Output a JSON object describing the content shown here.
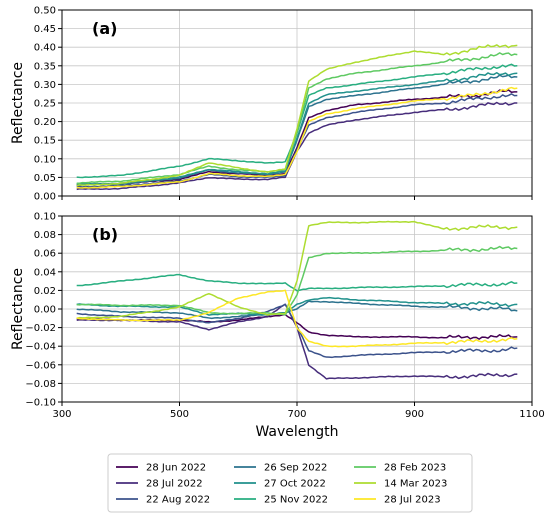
{
  "chart_data": [
    {
      "type": "line",
      "panel_label": "(a)",
      "ylabel": "Reflectance",
      "xlabel": "",
      "xlim": [
        300,
        1100
      ],
      "ylim": [
        0,
        0.5
      ],
      "xticks": [
        300,
        500,
        700,
        900,
        1100
      ],
      "xtick_labels": [
        "",
        "",
        "",
        "",
        ""
      ],
      "yticks": [
        0,
        0.05,
        0.1,
        0.15,
        0.2,
        0.25,
        0.3,
        0.35,
        0.4,
        0.45,
        0.5
      ],
      "ytick_labels": [
        "0.00",
        "0.05",
        "0.10",
        "0.15",
        "0.20",
        "0.25",
        "0.30",
        "0.35",
        "0.40",
        "0.45",
        "0.50"
      ],
      "grid": true,
      "series": [
        {
          "name": "28 Jun 2022",
          "color": "#440154",
          "x": [
            325,
            400,
            500,
            550,
            600,
            650,
            680,
            700,
            720,
            750,
            800,
            900,
            950,
            1000,
            1050,
            1075
          ],
          "y": [
            0.03,
            0.032,
            0.045,
            0.065,
            0.06,
            0.055,
            0.06,
            0.13,
            0.21,
            0.23,
            0.245,
            0.26,
            0.265,
            0.27,
            0.28,
            0.28
          ]
        },
        {
          "name": "28 Jul 2022",
          "color": "#472d7b",
          "x": [
            325,
            400,
            500,
            550,
            600,
            650,
            680,
            700,
            720,
            750,
            800,
            900,
            950,
            1000,
            1050,
            1075
          ],
          "y": [
            0.018,
            0.02,
            0.035,
            0.05,
            0.045,
            0.045,
            0.05,
            0.12,
            0.17,
            0.19,
            0.205,
            0.225,
            0.232,
            0.24,
            0.25,
            0.25
          ]
        },
        {
          "name": "22 Aug 2022",
          "color": "#3b528b",
          "x": [
            325,
            400,
            500,
            550,
            600,
            650,
            680,
            700,
            720,
            750,
            800,
            900,
            950,
            1000,
            1050,
            1075
          ],
          "y": [
            0.025,
            0.027,
            0.04,
            0.058,
            0.052,
            0.05,
            0.055,
            0.125,
            0.19,
            0.21,
            0.225,
            0.245,
            0.25,
            0.26,
            0.27,
            0.27
          ]
        },
        {
          "name": "26 Sep 2022",
          "color": "#2c728e",
          "x": [
            325,
            400,
            500,
            550,
            600,
            650,
            680,
            700,
            720,
            750,
            800,
            900,
            950,
            1000,
            1050,
            1075
          ],
          "y": [
            0.03,
            0.032,
            0.048,
            0.07,
            0.062,
            0.058,
            0.065,
            0.15,
            0.24,
            0.26,
            0.27,
            0.29,
            0.3,
            0.31,
            0.32,
            0.32
          ]
        },
        {
          "name": "27 Oct 2022",
          "color": "#21918c",
          "x": [
            325,
            400,
            500,
            550,
            600,
            650,
            680,
            700,
            720,
            750,
            800,
            900,
            950,
            1000,
            1050,
            1075
          ],
          "y": [
            0.032,
            0.034,
            0.05,
            0.072,
            0.065,
            0.06,
            0.067,
            0.155,
            0.25,
            0.272,
            0.282,
            0.3,
            0.31,
            0.32,
            0.33,
            0.33
          ]
        },
        {
          "name": "25 Nov 2022",
          "color": "#28ae80",
          "x": [
            325,
            400,
            500,
            550,
            600,
            650,
            680,
            700,
            720,
            750,
            800,
            900,
            950,
            1000,
            1050,
            1075
          ],
          "y": [
            0.05,
            0.055,
            0.08,
            0.1,
            0.095,
            0.088,
            0.092,
            0.17,
            0.27,
            0.29,
            0.3,
            0.32,
            0.33,
            0.34,
            0.35,
            0.35
          ]
        },
        {
          "name": "28 Feb 2023",
          "color": "#5ec962",
          "x": [
            325,
            400,
            500,
            550,
            600,
            650,
            680,
            700,
            720,
            750,
            800,
            900,
            950,
            1000,
            1050,
            1075
          ],
          "y": [
            0.035,
            0.04,
            0.058,
            0.08,
            0.07,
            0.065,
            0.072,
            0.17,
            0.29,
            0.315,
            0.33,
            0.35,
            0.36,
            0.37,
            0.38,
            0.38
          ]
        },
        {
          "name": "14 Mar 2023",
          "color": "#addc30",
          "x": [
            325,
            400,
            500,
            550,
            600,
            650,
            680,
            700,
            720,
            750,
            800,
            900,
            950,
            1000,
            1050,
            1075
          ],
          "y": [
            0.028,
            0.034,
            0.055,
            0.09,
            0.075,
            0.065,
            0.072,
            0.18,
            0.31,
            0.34,
            0.36,
            0.39,
            0.38,
            0.395,
            0.405,
            0.405
          ]
        },
        {
          "name": "28 Jul 2023",
          "color": "#fde725",
          "x": [
            325,
            400,
            500,
            550,
            600,
            650,
            680,
            700,
            720,
            750,
            800,
            900,
            950,
            1000,
            1050,
            1075
          ],
          "y": [
            0.022,
            0.025,
            0.038,
            0.06,
            0.055,
            0.052,
            0.058,
            0.12,
            0.2,
            0.22,
            0.235,
            0.255,
            0.262,
            0.27,
            0.285,
            0.29
          ]
        }
      ]
    },
    {
      "type": "line",
      "panel_label": "(b)",
      "ylabel": "Reflectance",
      "xlabel": "Wavelength",
      "xlim": [
        300,
        1100
      ],
      "ylim": [
        -0.1,
        0.1
      ],
      "xticks": [
        300,
        500,
        700,
        900,
        1100
      ],
      "xtick_labels": [
        "300",
        "500",
        "700",
        "900",
        "1100"
      ],
      "yticks": [
        -0.1,
        -0.08,
        -0.06,
        -0.04,
        -0.02,
        0,
        0.02,
        0.04,
        0.06,
        0.08,
        0.1
      ],
      "ytick_labels": [
        "−0.10",
        "−0.08",
        "−0.06",
        "−0.04",
        "−0.02",
        "0.00",
        "0.02",
        "0.04",
        "0.06",
        "0.08",
        "0.10"
      ],
      "grid": true,
      "series": [
        {
          "name": "28 Jun 2022",
          "color": "#440154",
          "x": [
            325,
            400,
            500,
            550,
            600,
            650,
            680,
            700,
            720,
            750,
            800,
            900,
            950,
            1000,
            1050,
            1075
          ],
          "y": [
            -0.01,
            -0.012,
            -0.012,
            -0.014,
            -0.012,
            -0.008,
            -0.006,
            -0.015,
            -0.025,
            -0.028,
            -0.03,
            -0.03,
            -0.031,
            -0.03,
            -0.03,
            -0.03
          ]
        },
        {
          "name": "28 Jul 2022",
          "color": "#472d7b",
          "x": [
            325,
            400,
            500,
            550,
            600,
            650,
            680,
            700,
            720,
            750,
            800,
            900,
            950,
            1000,
            1050,
            1075
          ],
          "y": [
            -0.012,
            -0.012,
            -0.014,
            -0.022,
            -0.014,
            -0.008,
            0.005,
            -0.02,
            -0.06,
            -0.075,
            -0.074,
            -0.072,
            -0.073,
            -0.072,
            -0.071,
            -0.07
          ]
        },
        {
          "name": "22 Aug 2022",
          "color": "#3b528b",
          "x": [
            325,
            400,
            500,
            550,
            600,
            650,
            680,
            700,
            720,
            750,
            800,
            900,
            950,
            1000,
            1050,
            1075
          ],
          "y": [
            -0.005,
            -0.008,
            -0.01,
            -0.015,
            -0.01,
            -0.003,
            0.005,
            -0.018,
            -0.045,
            -0.052,
            -0.05,
            -0.047,
            -0.046,
            -0.045,
            -0.044,
            -0.042
          ]
        },
        {
          "name": "26 Sep 2022",
          "color": "#2c728e",
          "x": [
            325,
            400,
            500,
            550,
            600,
            650,
            680,
            700,
            720,
            750,
            800,
            900,
            950,
            1000,
            1050,
            1075
          ],
          "y": [
            0.0,
            -0.003,
            -0.004,
            -0.01,
            -0.008,
            -0.006,
            -0.004,
            0.0,
            0.008,
            0.008,
            0.006,
            0.003,
            0.002,
            0.001,
            0.0,
            -0.002
          ]
        },
        {
          "name": "27 Oct 2022",
          "color": "#21918c",
          "x": [
            325,
            400,
            500,
            550,
            600,
            650,
            680,
            700,
            720,
            750,
            800,
            900,
            950,
            1000,
            1050,
            1075
          ],
          "y": [
            0.005,
            0.003,
            0.002,
            -0.006,
            -0.005,
            -0.006,
            -0.004,
            0.005,
            0.01,
            0.012,
            0.01,
            0.007,
            0.006,
            0.006,
            0.005,
            0.005
          ]
        },
        {
          "name": "25 Nov 2022",
          "color": "#28ae80",
          "x": [
            325,
            400,
            500,
            550,
            600,
            650,
            680,
            700,
            720,
            750,
            800,
            900,
            950,
            1000,
            1050,
            1075
          ],
          "y": [
            0.025,
            0.03,
            0.037,
            0.03,
            0.028,
            0.027,
            0.028,
            0.02,
            0.022,
            0.022,
            0.023,
            0.024,
            0.025,
            0.026,
            0.027,
            0.028
          ]
        },
        {
          "name": "28 Feb 2023",
          "color": "#5ec962",
          "x": [
            325,
            400,
            500,
            550,
            600,
            650,
            680,
            700,
            720,
            750,
            800,
            900,
            950,
            1000,
            1050,
            1075
          ],
          "y": [
            0.005,
            0.004,
            0.004,
            -0.004,
            -0.005,
            -0.004,
            -0.006,
            0.015,
            0.055,
            0.06,
            0.06,
            0.062,
            0.063,
            0.064,
            0.065,
            0.065
          ]
        },
        {
          "name": "14 Mar 2023",
          "color": "#addc30",
          "x": [
            325,
            400,
            500,
            550,
            600,
            650,
            680,
            700,
            720,
            750,
            800,
            900,
            950,
            1000,
            1050,
            1075
          ],
          "y": [
            -0.01,
            -0.008,
            0.002,
            0.017,
            0.002,
            -0.006,
            -0.005,
            0.03,
            0.09,
            0.093,
            0.093,
            0.094,
            0.086,
            0.088,
            0.088,
            0.088
          ]
        },
        {
          "name": "28 Jul 2023",
          "color": "#fde725",
          "x": [
            325,
            400,
            500,
            550,
            600,
            650,
            680,
            700,
            720,
            750,
            800,
            900,
            950,
            1000,
            1050,
            1075
          ],
          "y": [
            -0.01,
            -0.012,
            -0.012,
            -0.004,
            0.012,
            0.018,
            0.02,
            -0.02,
            -0.035,
            -0.04,
            -0.04,
            -0.037,
            -0.036,
            -0.035,
            -0.033,
            -0.032
          ]
        }
      ]
    }
  ],
  "legend": {
    "placement": "bottom-center",
    "entries": [
      "28 Jun 2022",
      "28 Jul 2022",
      "22 Aug 2022",
      "26 Sep 2022",
      "27 Oct 2022",
      "25 Nov 2022",
      "28 Feb 2023",
      "14 Mar 2023",
      "28 Jul 2023"
    ],
    "colors": [
      "#440154",
      "#472d7b",
      "#3b528b",
      "#2c728e",
      "#21918c",
      "#28ae80",
      "#5ec962",
      "#addc30",
      "#fde725"
    ]
  }
}
